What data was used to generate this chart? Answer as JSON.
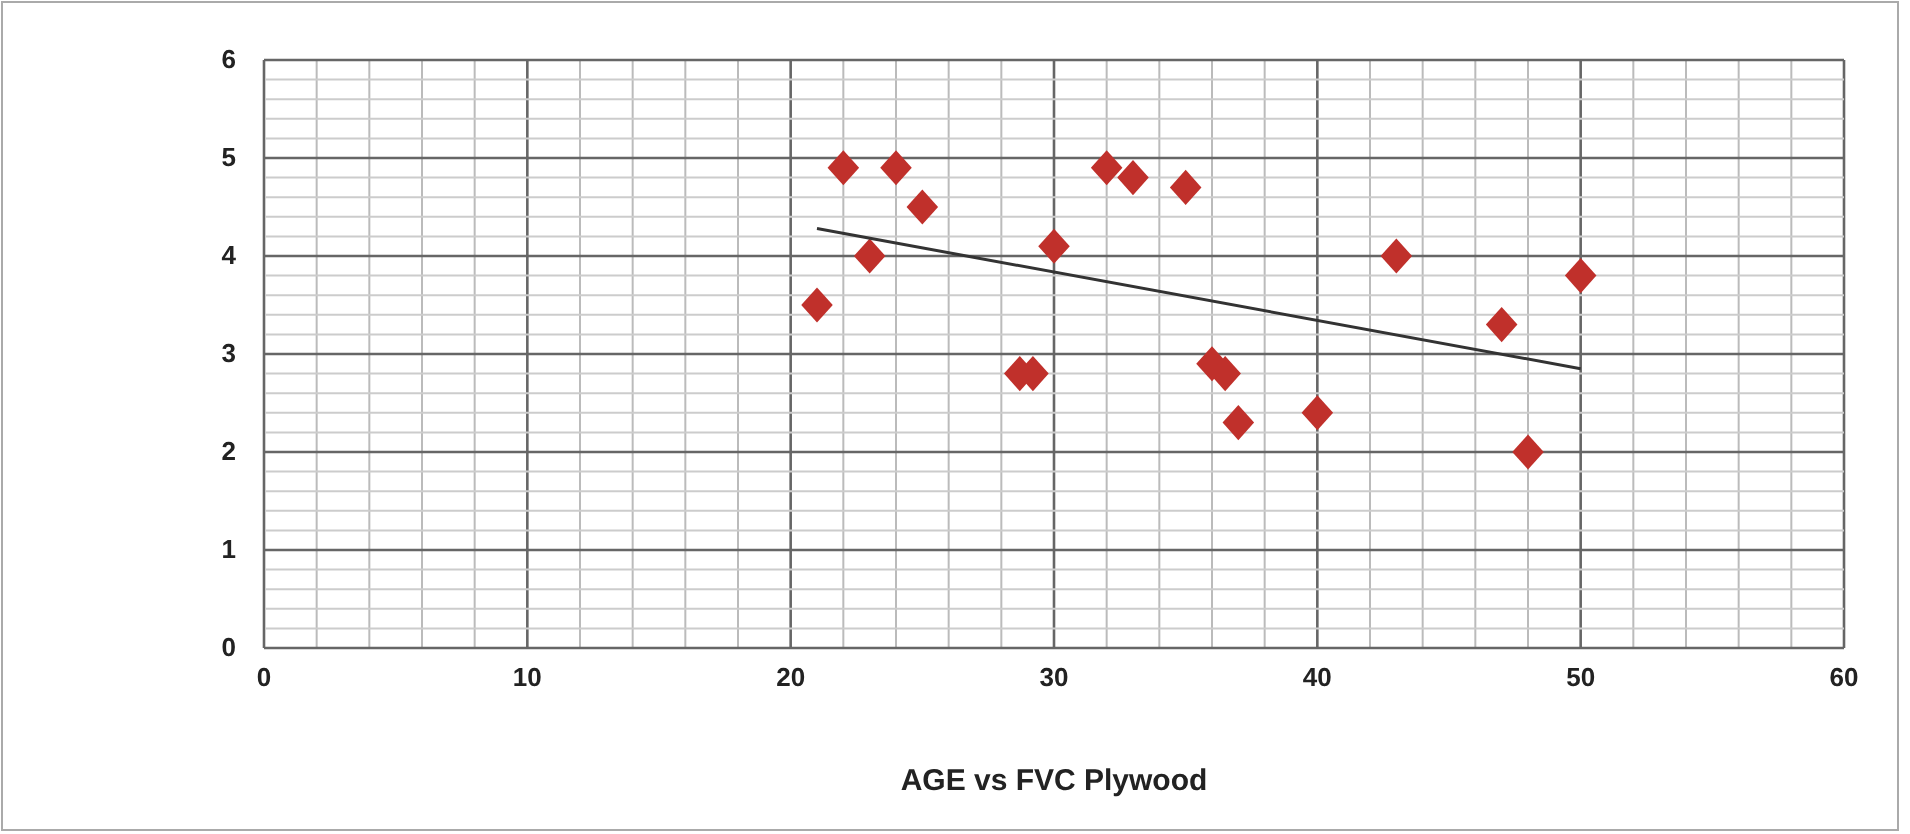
{
  "chart_data": {
    "type": "scatter",
    "xlabel": "AGE vs FVC Plywood",
    "xlim": [
      0,
      60
    ],
    "ylim": [
      0,
      6
    ],
    "grid": true,
    "xticks": [
      0,
      {
        "value": 2,
        "label": null
      },
      {
        "value": 4,
        "label": null
      },
      {
        "value": 6,
        "label": null
      },
      {
        "value": 8,
        "label": null
      },
      10,
      {
        "value": 12,
        "label": null
      },
      {
        "value": 14,
        "label": null
      },
      {
        "value": 16,
        "label": null
      },
      {
        "value": 18,
        "label": null
      },
      20,
      {
        "value": 22,
        "label": null
      },
      {
        "value": 24,
        "label": null
      },
      {
        "value": 26,
        "label": null
      },
      {
        "value": 28,
        "label": null
      },
      30,
      {
        "value": 32,
        "label": null
      },
      {
        "value": 34,
        "label": null
      },
      {
        "value": 36,
        "label": null
      },
      {
        "value": 38,
        "label": null
      },
      40,
      {
        "value": 42,
        "label": null
      },
      {
        "value": 44,
        "label": null
      },
      {
        "value": 46,
        "label": null
      },
      {
        "value": 48,
        "label": null
      },
      50,
      {
        "value": 52,
        "label": null
      },
      {
        "value": 54,
        "label": null
      },
      {
        "value": 56,
        "label": null
      },
      {
        "value": 58,
        "label": null
      },
      60
    ],
    "yticks": [
      0,
      {
        "value": 0.2,
        "label": null
      },
      {
        "value": 0.4,
        "label": null
      },
      {
        "value": 0.6,
        "label": null
      },
      {
        "value": 0.8,
        "label": null
      },
      1,
      {
        "value": 1.2,
        "label": null
      },
      {
        "value": 1.4,
        "label": null
      },
      {
        "value": 1.6,
        "label": null
      },
      {
        "value": 1.8,
        "label": null
      },
      2,
      {
        "value": 2.2,
        "label": null
      },
      {
        "value": 2.4,
        "label": null
      },
      {
        "value": 2.6,
        "label": null
      },
      {
        "value": 2.8,
        "label": null
      },
      3,
      {
        "value": 3.2,
        "label": null
      },
      {
        "value": 3.4,
        "label": null
      },
      {
        "value": 3.6,
        "label": null
      },
      {
        "value": 3.8,
        "label": null
      },
      4,
      {
        "value": 4.2,
        "label": null
      },
      {
        "value": 4.4,
        "label": null
      },
      {
        "value": 4.6,
        "label": null
      },
      {
        "value": 4.8,
        "label": null
      },
      5,
      {
        "value": 5.2,
        "label": null
      },
      {
        "value": 5.4,
        "label": null
      },
      {
        "value": 5.6,
        "label": null
      },
      {
        "value": 5.8,
        "label": null
      },
      6
    ],
    "series": [
      {
        "marker": "diamond",
        "color": "#c0302b",
        "x": [
          21,
          22,
          23,
          24,
          25,
          28.7,
          29.2,
          30,
          32,
          33,
          35,
          36,
          36.5,
          37,
          40,
          43,
          47,
          48,
          50
        ],
        "values": [
          3.5,
          4.9,
          4.0,
          4.9,
          4.5,
          2.8,
          2.8,
          4.1,
          4.9,
          4.8,
          4.7,
          2.9,
          2.8,
          2.3,
          2.4,
          4.0,
          3.3,
          2.0,
          3.8
        ]
      },
      {
        "type": "line",
        "color": "#333333",
        "x": [
          21,
          50
        ],
        "values": [
          4.28,
          2.85
        ]
      }
    ]
  }
}
